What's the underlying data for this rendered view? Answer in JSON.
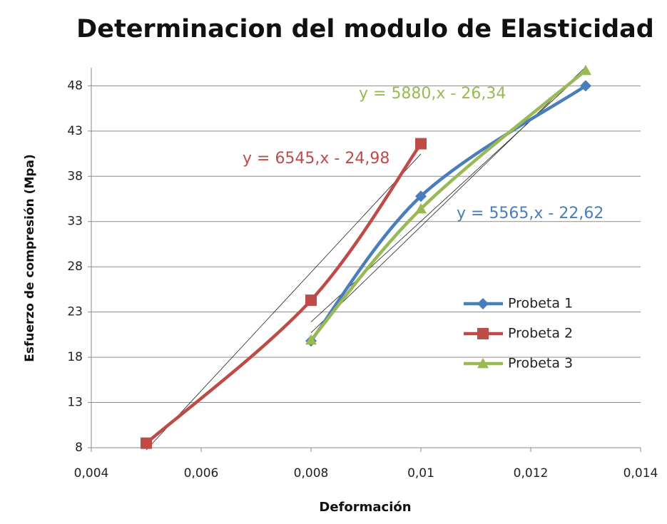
{
  "chart_data": {
    "type": "line",
    "title": "Determinacion del modulo de Elasticidad",
    "x_label": "Deformación",
    "y_label": "Esfuerzo de compresión (Mpa)",
    "xlim": [
      0.004,
      0.014
    ],
    "xticks": [
      {
        "value": 0.004,
        "label": "0,004"
      },
      {
        "value": 0.006,
        "label": "0,006"
      },
      {
        "value": 0.008,
        "label": "0,008"
      },
      {
        "value": 0.01,
        "label": "0,01"
      },
      {
        "value": 0.012,
        "label": "0,012"
      },
      {
        "value": 0.014,
        "label": "0,014"
      }
    ],
    "ylim": [
      8,
      50
    ],
    "yticks": [
      8,
      13,
      18,
      23,
      28,
      33,
      38,
      43,
      48
    ],
    "grid": true,
    "legend": "right",
    "series": [
      {
        "name": "Probeta 1",
        "color": "#4a7ebb",
        "marker": "diamond",
        "x": [
          0.008,
          0.01,
          0.013
        ],
        "values": [
          19.8,
          35.8,
          48
        ]
      },
      {
        "name": "Probeta 2",
        "color": "#be4b48",
        "marker": "square",
        "x": [
          0.005,
          0.008,
          0.01
        ],
        "values": [
          8.5,
          24.3,
          41.6
        ]
      },
      {
        "name": "Probeta 3",
        "color": "#98b954",
        "marker": "triangle",
        "x": [
          0.008,
          0.01,
          0.013
        ],
        "values": [
          19.9,
          34.4,
          49.7
        ]
      }
    ],
    "trendlines": [
      {
        "label": "y = 5565,x - 22,62",
        "slope": 5565,
        "intercept": -22.62
      },
      {
        "label": "y = 6545,x - 24,98",
        "slope": 6545,
        "intercept": -24.98
      },
      {
        "label": "y = 5880,x - 26,34",
        "slope": 5880,
        "intercept": -26.34
      }
    ]
  }
}
